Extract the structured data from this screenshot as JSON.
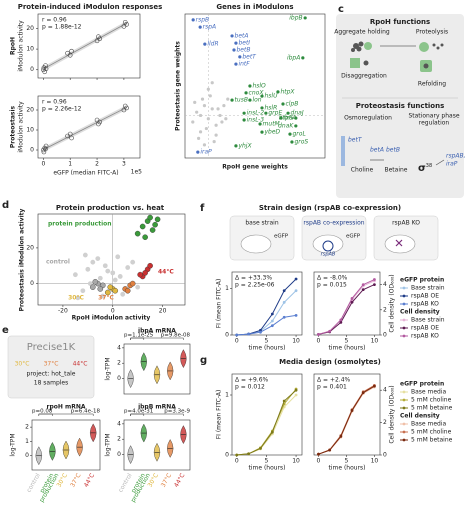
{
  "panel_labels": [
    "c",
    "d",
    "e",
    "f",
    "g"
  ],
  "panel_a": {
    "title": "Protein-induced iModulon responses",
    "xlabel": "eGFP (median FITC-A)",
    "xunit": "1e5",
    "xlim": [
      -0.2,
      3.6
    ],
    "xticks": [
      0,
      1,
      2,
      3
    ],
    "plots": [
      {
        "ylabel": [
          "RpoH",
          "iModulon activity"
        ],
        "r": "r = 0.96",
        "p": "p = 1.88e-12",
        "ylim": [
          -4,
          27
        ],
        "yticks": [
          0,
          10,
          20
        ],
        "x": [
          0,
          0.02,
          0.05,
          0.08,
          0.1,
          0.9,
          1.0,
          1.05,
          2.0,
          2.05,
          2.1,
          3.0,
          3.05,
          3.1
        ],
        "y": [
          0,
          1,
          -1,
          2,
          0.5,
          8,
          7,
          9,
          14,
          16,
          15,
          21,
          23,
          22
        ]
      },
      {
        "ylabel": [
          "Proteostasis",
          "iModulon activity"
        ],
        "r": "r = 0.96",
        "p": "p = 2.26e-12",
        "ylim": [
          -4,
          27
        ],
        "yticks": [
          0,
          10,
          20
        ],
        "x": [
          0,
          0.02,
          0.05,
          0.08,
          0.1,
          0.9,
          1.0,
          1.05,
          2.0,
          2.05,
          2.1,
          3.0,
          3.05,
          3.1
        ],
        "y": [
          0,
          -1,
          1,
          0.5,
          2,
          7,
          8,
          6,
          15,
          13,
          14,
          20,
          22,
          21
        ]
      }
    ]
  },
  "panel_b": {
    "title": "Genes in iModulons",
    "xlabel": "RpoH gene weights",
    "ylabel": "Proteostasis gene weights",
    "xlim": [
      -0.06,
      0.3
    ],
    "ylim": [
      -0.13,
      0.31
    ],
    "other_genes": {
      "color": "#c8c8c8",
      "x": [
        -0.04,
        -0.03,
        -0.02,
        -0.01,
        0,
        0.01,
        0.02,
        0.03,
        -0.035,
        -0.025,
        -0.015,
        -0.005,
        0.005,
        0.015,
        0.025,
        0.035,
        -0.02,
        0,
        0.02,
        0.04,
        -0.01,
        0.01,
        0.045,
        0.05
      ],
      "y": [
        -0.02,
        0.01,
        -0.05,
        0.03,
        -0.01,
        0.02,
        -0.03,
        0,
        0.04,
        -0.07,
        0.05,
        -0.04,
        0.06,
        -0.08,
        0.02,
        -0.02,
        0.0,
        0.08,
        -0.06,
        0.03,
        -0.09,
        0.1,
        -0.01,
        0.05
      ]
    },
    "genes": [
      {
        "name": "rspB",
        "x": -0.039,
        "y": 0.292,
        "color": "#4a6fc0"
      },
      {
        "name": "rspA",
        "x": -0.021,
        "y": 0.27,
        "color": "#4a6fc0"
      },
      {
        "name": "lldR",
        "x": -0.009,
        "y": 0.218,
        "color": "#4a6fc0"
      },
      {
        "name": "betA",
        "x": 0.061,
        "y": 0.243,
        "color": "#4a6fc0"
      },
      {
        "name": "betI",
        "x": 0.071,
        "y": 0.221,
        "color": "#4a6fc0"
      },
      {
        "name": "betB",
        "x": 0.066,
        "y": 0.2,
        "color": "#4a6fc0"
      },
      {
        "name": "betT",
        "x": 0.081,
        "y": 0.179,
        "color": "#4a6fc0"
      },
      {
        "name": "intF",
        "x": 0.071,
        "y": 0.157,
        "color": "#4a6fc0"
      },
      {
        "name": "ibpB",
        "x": 0.249,
        "y": 0.298,
        "color": "#2e8b3e"
      },
      {
        "name": "ibpA",
        "x": 0.243,
        "y": 0.176,
        "color": "#2e8b3e"
      },
      {
        "name": "hslO",
        "x": 0.107,
        "y": 0.09,
        "color": "#2e8b3e"
      },
      {
        "name": "cnoX",
        "x": 0.097,
        "y": 0.069,
        "color": "#2e8b3e"
      },
      {
        "name": "lon",
        "x": 0.107,
        "y": 0.047,
        "color": "#2e8b3e"
      },
      {
        "name": "hslU",
        "x": 0.138,
        "y": 0.059,
        "color": "#2e8b3e"
      },
      {
        "name": "hslR",
        "x": 0.138,
        "y": 0.023,
        "color": "#2e8b3e"
      },
      {
        "name": "htpX",
        "x": 0.179,
        "y": 0.072,
        "color": "#2e8b3e"
      },
      {
        "name": "clpB",
        "x": 0.192,
        "y": 0.035,
        "color": "#2e8b3e"
      },
      {
        "name": "dnaJ",
        "x": 0.205,
        "y": 0.007,
        "color": "#2e8b3e"
      },
      {
        "name": "htpG",
        "x": 0.225,
        "y": -0.008,
        "color": "#2e8b3e"
      },
      {
        "name": "tusB",
        "x": 0.061,
        "y": 0.047,
        "color": "#2e8b3e"
      },
      {
        "name": "insL-2",
        "x": 0.092,
        "y": 0.007,
        "color": "#2e8b3e"
      },
      {
        "name": "insL-3",
        "x": 0.092,
        "y": -0.014,
        "color": "#2e8b3e"
      },
      {
        "name": "mutM",
        "x": 0.133,
        "y": -0.026,
        "color": "#2e8b3e"
      },
      {
        "name": "grpE",
        "x": 0.148,
        "y": 0.007,
        "color": "#2e8b3e"
      },
      {
        "name": "fxsA",
        "x": 0.187,
        "y": -0.008,
        "color": "#2e8b3e"
      },
      {
        "name": "dnaK",
        "x": 0.225,
        "y": -0.032,
        "color": "#2e8b3e"
      },
      {
        "name": "ybeD",
        "x": 0.138,
        "y": -0.051,
        "color": "#2e8b3e"
      },
      {
        "name": "groL",
        "x": 0.21,
        "y": -0.057,
        "color": "#2e8b3e"
      },
      {
        "name": "groS",
        "x": 0.215,
        "y": -0.081,
        "color": "#2e8b3e"
      },
      {
        "name": "yhjX",
        "x": 0.071,
        "y": -0.093,
        "color": "#2e8b3e"
      },
      {
        "name": "iraP",
        "x": -0.027,
        "y": -0.112,
        "color": "#4a6fc0"
      }
    ]
  },
  "panel_c": {
    "title": "RpoH functions",
    "rpoh_functions": [
      "Aggregate holding",
      "Proteolysis",
      "Disaggregation",
      "Refolding"
    ],
    "title2": "Proteostasis functions",
    "osmoregulation": "Osmoregulation",
    "stationary": [
      "Stationary phase",
      "regulation"
    ],
    "genes": [
      "betT",
      "betA",
      "betB"
    ],
    "metabolites": [
      "Choline",
      "Betaine"
    ],
    "sigma": "σ",
    "sigma_sub": "38",
    "targets": [
      "rspAB,",
      "iraP"
    ]
  },
  "panel_d": {
    "title": "Protein production vs. heat",
    "xlabel": "RpoH iModulon activity",
    "ylabel": "Proteostasis iModulon activity",
    "xlim": [
      -30,
      29
    ],
    "ylim": [
      -12,
      39
    ],
    "xticks": [
      -20,
      0,
      20
    ],
    "yticks": [
      0,
      20
    ],
    "other_samples": {
      "color": "#d0d0d0",
      "x": [
        -15,
        -12,
        -10,
        -8,
        -5,
        -3,
        0,
        2,
        4,
        6,
        -14,
        -9,
        -6,
        -2,
        3,
        8,
        10,
        -11,
        -4,
        1
      ],
      "y": [
        5,
        -4,
        8,
        12,
        3,
        10,
        6,
        15,
        -6,
        9,
        -8,
        0,
        14,
        7,
        4,
        12,
        -2,
        16,
        -7,
        2
      ]
    },
    "groups": [
      {
        "name": "control",
        "color": "#a8a8a8",
        "x": [
          -8,
          -6,
          -4,
          -7,
          -5
        ],
        "y": [
          -2,
          0,
          -1,
          1,
          -3
        ]
      },
      {
        "name": "protein production",
        "color": "#3a9a3a",
        "x": [
          10,
          12,
          14,
          16,
          18,
          13,
          15,
          17
        ],
        "y": [
          28,
          32,
          35,
          30,
          36,
          26,
          37,
          33
        ]
      },
      {
        "name": "30°C",
        "color": "#e0b840",
        "x": [
          -2,
          0,
          1,
          -1
        ],
        "y": [
          -5,
          -3,
          -4,
          -2
        ]
      },
      {
        "name": "37°C",
        "color": "#e08040",
        "x": [
          5,
          7,
          6,
          8
        ],
        "y": [
          -3,
          -1,
          -4,
          0
        ]
      },
      {
        "name": "44°C",
        "color": "#c83030",
        "x": [
          12,
          14,
          13,
          15,
          11
        ],
        "y": [
          4,
          8,
          6,
          10,
          5
        ]
      }
    ]
  },
  "panel_e": {
    "precise": {
      "title": "Precise1K",
      "conditions": [
        "30°C",
        "37°C",
        "44°C"
      ],
      "project": "project: hot_tale",
      "samples": "18 samples"
    },
    "ylabel": "log-TPM",
    "category_lines": [
      [
        "control"
      ],
      [
        "protein",
        "production"
      ],
      [
        "30°C"
      ],
      [
        "37°C"
      ],
      [
        "44°C"
      ]
    ],
    "colors": [
      "#b8b8b8",
      "#3a9a3a",
      "#e0b840",
      "#e08040",
      "#c83030"
    ],
    "ibpA": {
      "title": "ibpA mRNA",
      "pvalues": [
        "p=1.1e-25",
        "p=9.8e-08"
      ],
      "ylim": [
        -2,
        4.5
      ],
      "yticks": [
        0,
        2,
        4
      ],
      "medians": [
        0,
        2.2,
        0.5,
        1.0,
        2.6
      ]
    },
    "rpoH": {
      "title": "rpoH mRNA",
      "pvalues": [
        "p=0.08",
        "p=6.4e-18"
      ],
      "ylim": [
        -1,
        2.5
      ],
      "yticks": [
        0,
        1,
        2
      ],
      "medians": [
        0,
        0.3,
        0.4,
        0.6,
        1.6
      ]
    },
    "ibpB": {
      "title": "ibpB mRNA",
      "pvalues": [
        "p=4.0e-31",
        "p=3.3e-9"
      ],
      "ylim": [
        -2,
        4.5
      ],
      "yticks": [
        0,
        2,
        4
      ],
      "medians": [
        0,
        2.8,
        0.3,
        0.8,
        2.6
      ]
    }
  },
  "panel_f": {
    "title": "Strain design (rspAB co-expression)",
    "cartoons": [
      "base strain",
      "rspAB co-expression",
      "rspAB KO"
    ],
    "egfp": "eGFP",
    "plasmid": "rspAB",
    "xlabel": "time (hours)",
    "x": [
      0,
      2,
      4,
      6,
      8,
      10
    ],
    "xlim": [
      -0.8,
      11
    ],
    "xticks": [
      0,
      5,
      10
    ],
    "left": {
      "ylabel": "FI (mean FITC-A)",
      "ylim": [
        0,
        1.35
      ],
      "yticks": [
        0,
        1
      ],
      "delta": "Δ = +33.3%",
      "p": "p = 2.25e-06",
      "legend_title": "eGFP protein",
      "series": [
        {
          "name": "Base strain",
          "color": "#9ec3e6",
          "values": [
            0,
            0.02,
            0.08,
            0.3,
            0.7,
            0.95
          ]
        },
        {
          "name": "rspAB OE",
          "color": "#1f3c88",
          "values": [
            0,
            0.02,
            0.1,
            0.45,
            0.95,
            1.2
          ]
        },
        {
          "name": "rspAB KO",
          "color": "#5b7fd0",
          "values": [
            0,
            0.02,
            0.06,
            0.2,
            0.38,
            0.42
          ]
        }
      ]
    },
    "right": {
      "ylabel": "Cell density (OD₆₀₀)",
      "ylim": [
        0,
        5
      ],
      "yticks": [
        0,
        2,
        4
      ],
      "delta": "Δ = -8.0%",
      "p": "p = 0.015",
      "legend_title": "Cell density",
      "series": [
        {
          "name": "Base strain",
          "color": "#e6b3d6",
          "values": [
            0.05,
            0.3,
            1.2,
            2.8,
            3.9,
            4.3
          ]
        },
        {
          "name": "rspAB OE",
          "color": "#5e1b52",
          "values": [
            0.05,
            0.25,
            1.0,
            2.6,
            3.6,
            4.0
          ]
        },
        {
          "name": "rspAB KO",
          "color": "#b35aa0",
          "values": [
            0.05,
            0.3,
            1.2,
            2.9,
            4.0,
            4.4
          ]
        }
      ]
    }
  },
  "panel_g": {
    "title": "Media design (osmolytes)",
    "xlabel": "time (hours)",
    "x": [
      0,
      2,
      4,
      6,
      8,
      10
    ],
    "xlim": [
      -0.8,
      11
    ],
    "xticks": [
      0,
      5,
      10
    ],
    "left": {
      "ylabel": "FI (mean FITC-A)",
      "ylim": [
        0,
        1.35
      ],
      "yticks": [
        0,
        1
      ],
      "delta": "Δ = +9.6%",
      "p": "p = 0.012",
      "legend_title": "eGFP protein",
      "series": [
        {
          "name": "Base media",
          "color": "#e6e0a0",
          "values": [
            0,
            0.02,
            0.1,
            0.35,
            0.8,
            1.0
          ]
        },
        {
          "name": "5 mM choline",
          "color": "#b5ad3a",
          "values": [
            0,
            0.02,
            0.12,
            0.4,
            0.85,
            1.1
          ]
        },
        {
          "name": "5 mM betaine",
          "color": "#7d7a1a",
          "values": [
            0,
            0.02,
            0.11,
            0.38,
            0.9,
            1.08
          ]
        }
      ]
    },
    "right": {
      "ylabel": "Cell density (OD₆₀₀)",
      "ylim": [
        0,
        5
      ],
      "yticks": [
        0,
        2,
        4
      ],
      "delta": "Δ = +2.4%",
      "p": "p = 0.401",
      "legend_title": "Cell density",
      "series": [
        {
          "name": "Base media",
          "color": "#f0c0a8",
          "values": [
            0.05,
            0.3,
            1.1,
            2.7,
            3.8,
            4.2
          ]
        },
        {
          "name": "5 mM choline",
          "color": "#c87050",
          "values": [
            0.05,
            0.32,
            1.2,
            2.8,
            3.9,
            4.3
          ]
        },
        {
          "name": "5 mM betaine",
          "color": "#7a2a10",
          "values": [
            0.05,
            0.3,
            1.15,
            2.75,
            3.85,
            4.25
          ]
        }
      ]
    }
  }
}
